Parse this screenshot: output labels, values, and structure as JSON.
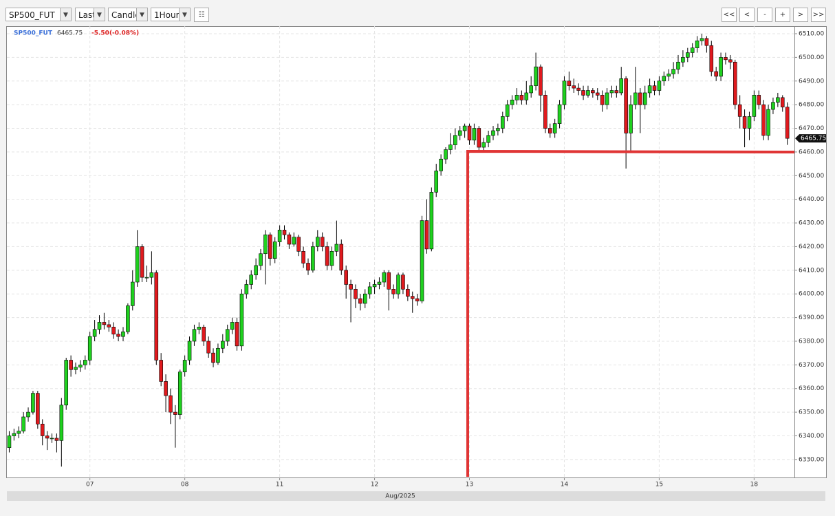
{
  "toolbar": {
    "symbol": "SP500_FUT",
    "price_type": "Last",
    "chart_style": "Candle",
    "interval": "1Hour",
    "nav": [
      "<<",
      "<",
      "-",
      "+",
      ">",
      ">>"
    ]
  },
  "chart_data": {
    "type": "candlestick",
    "x_label": "Aug/2025",
    "change_label": "-5.50(-0.08%)",
    "grid": true,
    "up_color": "#1fd11f",
    "down_color": "#e01a1e",
    "xlim": [
      -0.5,
      165.5
    ],
    "xticks": [
      {
        "value": 17,
        "label": "07"
      },
      {
        "value": 37,
        "label": "08"
      },
      {
        "value": 57,
        "label": "11"
      },
      {
        "value": 77,
        "label": "12"
      },
      {
        "value": 97,
        "label": "13"
      },
      {
        "value": 117,
        "label": "14"
      },
      {
        "value": 137,
        "label": "15"
      },
      {
        "value": 157,
        "label": "18"
      }
    ],
    "ylim": [
      6322.4,
      6513.2
    ],
    "yticks": [
      {
        "value": 6330,
        "label": "6330.00"
      },
      {
        "value": 6340,
        "label": "6340.00"
      },
      {
        "value": 6350,
        "label": "6350.00"
      },
      {
        "value": 6360,
        "label": "6360.00"
      },
      {
        "value": 6370,
        "label": "6370.00"
      },
      {
        "value": 6380,
        "label": "6380.00"
      },
      {
        "value": 6390,
        "label": "6390.00"
      },
      {
        "value": 6400,
        "label": "6400.00"
      },
      {
        "value": 6410,
        "label": "6410.00"
      },
      {
        "value": 6420,
        "label": "6420.00"
      },
      {
        "value": 6430,
        "label": "6430.00"
      },
      {
        "value": 6440,
        "label": "6440.00"
      },
      {
        "value": 6450,
        "label": "6450.00"
      },
      {
        "value": 6460,
        "label": "6460.00"
      },
      {
        "value": 6470,
        "label": "6470.00"
      },
      {
        "value": 6480,
        "label": "6480.00"
      },
      {
        "value": 6490,
        "label": "6490.00"
      },
      {
        "value": 6500,
        "label": "6500.00"
      },
      {
        "value": 6510,
        "label": "6510.00"
      }
    ],
    "series": [
      {
        "name": "SP500_FUT",
        "ohlc": [
          [
            6335,
            6342,
            6333,
            6340
          ],
          [
            6340,
            6343,
            6338,
            6341
          ],
          [
            6341,
            6344,
            6339,
            6342
          ],
          [
            6342,
            6350,
            6341,
            6348
          ],
          [
            6348,
            6352,
            6346,
            6350
          ],
          [
            6350,
            6359,
            6349,
            6358
          ],
          [
            6358,
            6359,
            6343,
            6345
          ],
          [
            6345,
            6347,
            6336,
            6340
          ],
          [
            6340,
            6342,
            6334,
            6339
          ],
          [
            6339,
            6341,
            6337,
            6339
          ],
          [
            6339,
            6341,
            6333,
            6338
          ],
          [
            6338,
            6356,
            6327,
            6353
          ],
          [
            6353,
            6373,
            6351,
            6372
          ],
          [
            6372,
            6374,
            6365,
            6368
          ],
          [
            6368,
            6371,
            6366,
            6369
          ],
          [
            6369,
            6372,
            6367,
            6370
          ],
          [
            6370,
            6374,
            6368,
            6372
          ],
          [
            6372,
            6384,
            6370,
            6382
          ],
          [
            6382,
            6389,
            6380,
            6385
          ],
          [
            6385,
            6391,
            6383,
            6388
          ],
          [
            6388,
            6392,
            6385,
            6387
          ],
          [
            6387,
            6389,
            6384,
            6386
          ],
          [
            6386,
            6388,
            6381,
            6383
          ],
          [
            6383,
            6385,
            6380,
            6382
          ],
          [
            6382,
            6386,
            6380,
            6384
          ],
          [
            6384,
            6396,
            6383,
            6395
          ],
          [
            6395,
            6410,
            6393,
            6405
          ],
          [
            6405,
            6427,
            6403,
            6420
          ],
          [
            6420,
            6421,
            6405,
            6407
          ],
          [
            6407,
            6412,
            6405,
            6407
          ],
          [
            6407,
            6418,
            6404,
            6409
          ],
          [
            6409,
            6410,
            6370,
            6372
          ],
          [
            6372,
            6375,
            6361,
            6363
          ],
          [
            6363,
            6366,
            6350,
            6357
          ],
          [
            6357,
            6360,
            6345,
            6350
          ],
          [
            6350,
            6353,
            6335,
            6349
          ],
          [
            6349,
            6368,
            6347,
            6367
          ],
          [
            6367,
            6374,
            6365,
            6372
          ],
          [
            6372,
            6382,
            6370,
            6380
          ],
          [
            6380,
            6387,
            6378,
            6385
          ],
          [
            6385,
            6388,
            6383,
            6386
          ],
          [
            6386,
            6387,
            6378,
            6380
          ],
          [
            6380,
            6382,
            6373,
            6375
          ],
          [
            6375,
            6377,
            6369,
            6371
          ],
          [
            6371,
            6379,
            6370,
            6377
          ],
          [
            6377,
            6383,
            6375,
            6380
          ],
          [
            6380,
            6387,
            6378,
            6385
          ],
          [
            6385,
            6390,
            6383,
            6388
          ],
          [
            6388,
            6390,
            6376,
            6378
          ],
          [
            6378,
            6402,
            6376,
            6400
          ],
          [
            6400,
            6406,
            6398,
            6404
          ],
          [
            6404,
            6410,
            6402,
            6408
          ],
          [
            6408,
            6415,
            6406,
            6412
          ],
          [
            6412,
            6419,
            6410,
            6417
          ],
          [
            6417,
            6427,
            6404,
            6425
          ],
          [
            6425,
            6426,
            6412,
            6415
          ],
          [
            6415,
            6424,
            6413,
            6422
          ],
          [
            6422,
            6429,
            6420,
            6427
          ],
          [
            6427,
            6429,
            6423,
            6425
          ],
          [
            6425,
            6426,
            6419,
            6421
          ],
          [
            6421,
            6426,
            6420,
            6424
          ],
          [
            6424,
            6425,
            6416,
            6418
          ],
          [
            6418,
            6420,
            6411,
            6413
          ],
          [
            6413,
            6415,
            6408,
            6410
          ],
          [
            6410,
            6422,
            6409,
            6420
          ],
          [
            6420,
            6427,
            6418,
            6424
          ],
          [
            6424,
            6426,
            6418,
            6420
          ],
          [
            6420,
            6422,
            6410,
            6412
          ],
          [
            6412,
            6420,
            6410,
            6418
          ],
          [
            6418,
            6431,
            6416,
            6421
          ],
          [
            6421,
            6423,
            6408,
            6410
          ],
          [
            6410,
            6412,
            6398,
            6404
          ],
          [
            6404,
            6406,
            6388,
            6402
          ],
          [
            6402,
            6404,
            6394,
            6398
          ],
          [
            6398,
            6400,
            6393,
            6396
          ],
          [
            6396,
            6402,
            6394,
            6400
          ],
          [
            6400,
            6405,
            6398,
            6403
          ],
          [
            6403,
            6406,
            6400,
            6404
          ],
          [
            6404,
            6407,
            6402,
            6405
          ],
          [
            6405,
            6410,
            6403,
            6409
          ],
          [
            6409,
            6410,
            6393,
            6402
          ],
          [
            6402,
            6404,
            6398,
            6400
          ],
          [
            6400,
            6409,
            6398,
            6408
          ],
          [
            6408,
            6409,
            6400,
            6402
          ],
          [
            6402,
            6404,
            6397,
            6399
          ],
          [
            6399,
            6401,
            6392,
            6398
          ],
          [
            6398,
            6400,
            6395,
            6397
          ],
          [
            6397,
            6433,
            6396,
            6431
          ],
          [
            6431,
            6440,
            6417,
            6419
          ],
          [
            6419,
            6445,
            6418,
            6443
          ],
          [
            6443,
            6455,
            6441,
            6452
          ],
          [
            6452,
            6459,
            6450,
            6457
          ],
          [
            6457,
            6462,
            6455,
            6461
          ],
          [
            6461,
            6468,
            6459,
            6463
          ],
          [
            6463,
            6470,
            6461,
            6467
          ],
          [
            6467,
            6471,
            6465,
            6469
          ],
          [
            6469,
            6472,
            6466,
            6471
          ],
          [
            6471,
            6472,
            6463,
            6465
          ],
          [
            6465,
            6472,
            6463,
            6470
          ],
          [
            6470,
            6471,
            6460,
            6462
          ],
          [
            6462,
            6466,
            6460,
            6464
          ],
          [
            6464,
            6469,
            6462,
            6467
          ],
          [
            6467,
            6471,
            6465,
            6469
          ],
          [
            6469,
            6472,
            6467,
            6470
          ],
          [
            6470,
            6477,
            6468,
            6475
          ],
          [
            6475,
            6482,
            6473,
            6480
          ],
          [
            6480,
            6484,
            6478,
            6482
          ],
          [
            6482,
            6487,
            6480,
            6484
          ],
          [
            6484,
            6486,
            6480,
            6482
          ],
          [
            6482,
            6490,
            6480,
            6485
          ],
          [
            6485,
            6492,
            6483,
            6488
          ],
          [
            6488,
            6502,
            6486,
            6496
          ],
          [
            6496,
            6497,
            6477,
            6484
          ],
          [
            6484,
            6486,
            6468,
            6470
          ],
          [
            6470,
            6472,
            6466,
            6468
          ],
          [
            6468,
            6474,
            6466,
            6472
          ],
          [
            6472,
            6482,
            6470,
            6480
          ],
          [
            6480,
            6492,
            6478,
            6490
          ],
          [
            6490,
            6494,
            6486,
            6488
          ],
          [
            6488,
            6491,
            6485,
            6487
          ],
          [
            6487,
            6489,
            6484,
            6486
          ],
          [
            6486,
            6488,
            6482,
            6484
          ],
          [
            6484,
            6488,
            6483,
            6486
          ],
          [
            6486,
            6487,
            6483,
            6485
          ],
          [
            6485,
            6487,
            6482,
            6484
          ],
          [
            6484,
            6486,
            6477,
            6480
          ],
          [
            6480,
            6487,
            6478,
            6485
          ],
          [
            6485,
            6488,
            6483,
            6486
          ],
          [
            6486,
            6488,
            6483,
            6485
          ],
          [
            6485,
            6496,
            6484,
            6491
          ],
          [
            6491,
            6492,
            6453,
            6468
          ],
          [
            6468,
            6484,
            6460,
            6480
          ],
          [
            6480,
            6496,
            6478,
            6485
          ],
          [
            6485,
            6487,
            6468,
            6480
          ],
          [
            6480,
            6488,
            6478,
            6485
          ],
          [
            6485,
            6491,
            6483,
            6488
          ],
          [
            6488,
            6490,
            6484,
            6486
          ],
          [
            6486,
            6492,
            6484,
            6490
          ],
          [
            6490,
            6494,
            6488,
            6492
          ],
          [
            6492,
            6495,
            6490,
            6493
          ],
          [
            6493,
            6498,
            6491,
            6495
          ],
          [
            6495,
            6501,
            6493,
            6498
          ],
          [
            6498,
            6503,
            6496,
            6500
          ],
          [
            6500,
            6504,
            6498,
            6502
          ],
          [
            6502,
            6506,
            6500,
            6504
          ],
          [
            6504,
            6509,
            6502,
            6507
          ],
          [
            6507,
            6510,
            6505,
            6508
          ],
          [
            6508,
            6509,
            6502,
            6505
          ],
          [
            6505,
            6507,
            6492,
            6494
          ],
          [
            6494,
            6496,
            6490,
            6492
          ],
          [
            6492,
            6502,
            6490,
            6500
          ],
          [
            6500,
            6502,
            6497,
            6499
          ],
          [
            6499,
            6501,
            6495,
            6498
          ],
          [
            6498,
            6499,
            6478,
            6480
          ],
          [
            6480,
            6484,
            6470,
            6475
          ],
          [
            6475,
            6478,
            6462,
            6470
          ],
          [
            6470,
            6477,
            6465,
            6475
          ],
          [
            6475,
            6486,
            6473,
            6484
          ],
          [
            6484,
            6486,
            6478,
            6480
          ],
          [
            6480,
            6482,
            6465,
            6467
          ],
          [
            6467,
            6480,
            6465,
            6478
          ],
          [
            6478,
            6483,
            6476,
            6481
          ],
          [
            6481,
            6485,
            6479,
            6483
          ],
          [
            6483,
            6484,
            6477,
            6479
          ],
          [
            6479,
            6481,
            6463,
            6465.75
          ]
        ]
      }
    ]
  }
}
